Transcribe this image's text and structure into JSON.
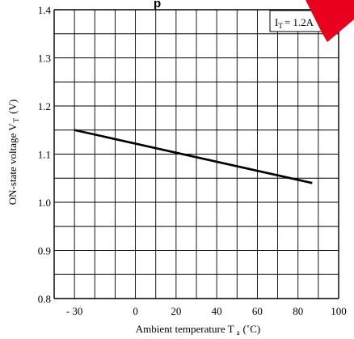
{
  "chart_data": {
    "type": "line",
    "title_fragment": "p",
    "xlabel_main": "Ambient temperature T",
    "xlabel_sub": "a",
    "xlabel_unit": "(˚C)",
    "ylabel_main": "ON-state voltage V",
    "ylabel_sub": "T",
    "ylabel_unit": "(V)",
    "xlim": [
      -40,
      100
    ],
    "ylim": [
      0.8,
      1.4
    ],
    "x_ticks": [
      {
        "value": -30,
        "label": "- 30"
      },
      {
        "value": 0,
        "label": "0"
      },
      {
        "value": 20,
        "label": "20"
      },
      {
        "value": 40,
        "label": "40"
      },
      {
        "value": 60,
        "label": "60"
      },
      {
        "value": 80,
        "label": "80"
      },
      {
        "value": 100,
        "label": "100"
      }
    ],
    "y_ticks": [
      "0.8",
      "0.9",
      "1.0",
      "1.1",
      "1.2",
      "1.3",
      "1.4"
    ],
    "grid": true,
    "annotation": {
      "main": "I",
      "sub": "T",
      "rest": "= 1.2A"
    },
    "series": [
      {
        "x": [
          -30,
          87
        ],
        "y": [
          1.15,
          1.04
        ]
      }
    ],
    "colors": {
      "line": "#000000",
      "grid": "#000000",
      "watermark": "#e8001c"
    }
  }
}
